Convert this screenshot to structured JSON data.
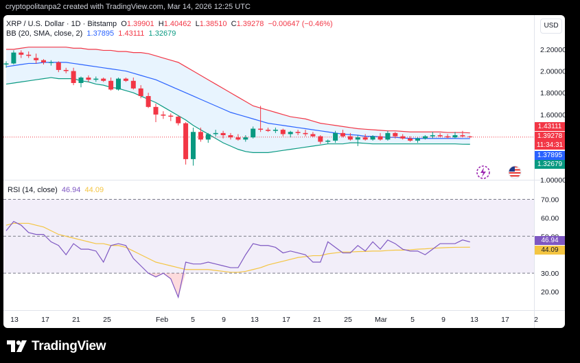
{
  "attribution": "cryptopolitanpa2 created with TradingView.com, Mar 14, 2026 12:25 UTC",
  "footer": {
    "brand": "TradingView"
  },
  "currency_button": "USD",
  "legend": {
    "symbol": "XRP / U.S. Dollar · 1D · Bitstamp",
    "open_label": "O",
    "open": "1.39901",
    "high_label": "H",
    "high": "1.40462",
    "low_label": "L",
    "low": "1.38510",
    "close_label": "C",
    "close": "1.39278",
    "change": "−0.00647 (−0.46%)",
    "bb_label": "BB (20, SMA, close, 2)",
    "bb_basis": "1.37895",
    "bb_upper": "1.43111",
    "bb_lower": "1.32679",
    "rsi_label": "RSI (14, close)",
    "rsi_value": "46.94",
    "rsi_ma": "44.09"
  },
  "price_tags": {
    "upper": "1.43111",
    "last": "1.39278",
    "countdown": "11:34:31",
    "basis": "1.37895",
    "lower": "1.32679",
    "rsi": "46.94",
    "rsi_ma": "44.09"
  },
  "colors": {
    "up": "#089981",
    "down": "#f23645",
    "bb_basis": "#2962ff",
    "bb_upper": "#f23645",
    "bb_lower": "#089981",
    "rsi": "#7e57c2",
    "rsi_ma": "#f4c542"
  },
  "chart_data": [
    {
      "type": "candlestick",
      "title": "XRP / U.S. Dollar · 1D · Bitstamp",
      "ylim": [
        1.0,
        2.3
      ],
      "y_ticks": [
        "2.20000",
        "2.00000",
        "1.80000",
        "1.60000",
        "1.00000"
      ],
      "x_ticks": [
        "13",
        "17",
        "21",
        "25",
        "Feb",
        "5",
        "9",
        "13",
        "17",
        "21",
        "25",
        "Mar",
        "5",
        "9",
        "13",
        "17",
        "2"
      ],
      "ohlc": [
        [
          2.06,
          2.09,
          2.03,
          2.07
        ],
        [
          2.07,
          2.19,
          2.06,
          2.17
        ],
        [
          2.17,
          2.19,
          2.12,
          2.15
        ],
        [
          2.15,
          2.18,
          2.12,
          2.14
        ],
        [
          2.12,
          2.16,
          2.07,
          2.1
        ],
        [
          2.1,
          2.11,
          2.06,
          2.08
        ],
        [
          2.08,
          2.1,
          2.05,
          2.08
        ],
        [
          2.08,
          2.09,
          1.99,
          2.01
        ],
        [
          2.01,
          2.03,
          1.98,
          2.0
        ],
        [
          2.0,
          2.03,
          1.87,
          1.89
        ],
        [
          1.89,
          1.95,
          1.85,
          1.94
        ],
        [
          1.94,
          1.96,
          1.9,
          1.92
        ],
        [
          1.92,
          1.95,
          1.9,
          1.93
        ],
        [
          1.93,
          1.94,
          1.9,
          1.91
        ],
        [
          1.91,
          1.94,
          1.82,
          1.83
        ],
        [
          1.83,
          1.94,
          1.82,
          1.93
        ],
        [
          1.93,
          1.94,
          1.9,
          1.91
        ],
        [
          1.91,
          1.94,
          1.83,
          1.84
        ],
        [
          1.84,
          1.87,
          1.75,
          1.77
        ],
        [
          1.77,
          1.8,
          1.66,
          1.67
        ],
        [
          1.67,
          1.7,
          1.53,
          1.6
        ],
        [
          1.6,
          1.63,
          1.56,
          1.59
        ],
        [
          1.59,
          1.61,
          1.54,
          1.58
        ],
        [
          1.58,
          1.59,
          1.5,
          1.52
        ],
        [
          1.52,
          1.53,
          1.14,
          1.19
        ],
        [
          1.19,
          1.48,
          1.13,
          1.44
        ],
        [
          1.44,
          1.48,
          1.35,
          1.37
        ],
        [
          1.37,
          1.43,
          1.34,
          1.42
        ],
        [
          1.42,
          1.46,
          1.4,
          1.43
        ],
        [
          1.43,
          1.45,
          1.38,
          1.41
        ],
        [
          1.41,
          1.43,
          1.37,
          1.39
        ],
        [
          1.39,
          1.42,
          1.36,
          1.37
        ],
        [
          1.37,
          1.41,
          1.35,
          1.39
        ],
        [
          1.39,
          1.49,
          1.38,
          1.47
        ],
        [
          1.47,
          1.68,
          1.44,
          1.46
        ],
        [
          1.46,
          1.48,
          1.44,
          1.45
        ],
        [
          1.45,
          1.48,
          1.43,
          1.46
        ],
        [
          1.46,
          1.47,
          1.4,
          1.42
        ],
        [
          1.42,
          1.45,
          1.39,
          1.44
        ],
        [
          1.44,
          1.46,
          1.41,
          1.43
        ],
        [
          1.43,
          1.46,
          1.4,
          1.42
        ],
        [
          1.42,
          1.44,
          1.39,
          1.4
        ],
        [
          1.4,
          1.41,
          1.33,
          1.35
        ],
        [
          1.35,
          1.37,
          1.33,
          1.36
        ],
        [
          1.36,
          1.45,
          1.34,
          1.43
        ],
        [
          1.43,
          1.46,
          1.39,
          1.4
        ],
        [
          1.4,
          1.43,
          1.36,
          1.37
        ],
        [
          1.37,
          1.41,
          1.31,
          1.39
        ],
        [
          1.39,
          1.42,
          1.36,
          1.37
        ],
        [
          1.37,
          1.41,
          1.36,
          1.4
        ],
        [
          1.4,
          1.43,
          1.36,
          1.37
        ],
        [
          1.37,
          1.45,
          1.36,
          1.43
        ],
        [
          1.43,
          1.44,
          1.38,
          1.4
        ],
        [
          1.4,
          1.42,
          1.37,
          1.38
        ],
        [
          1.38,
          1.4,
          1.35,
          1.36
        ],
        [
          1.36,
          1.39,
          1.34,
          1.38
        ],
        [
          1.38,
          1.41,
          1.37,
          1.4
        ],
        [
          1.4,
          1.44,
          1.38,
          1.41
        ],
        [
          1.41,
          1.43,
          1.39,
          1.4
        ],
        [
          1.4,
          1.42,
          1.38,
          1.39
        ],
        [
          1.39,
          1.44,
          1.38,
          1.41
        ],
        [
          1.41,
          1.45,
          1.39,
          1.4
        ],
        [
          1.39901,
          1.40462,
          1.3851,
          1.39278
        ]
      ],
      "bb_upper": [
        2.2,
        2.2,
        2.21,
        2.22,
        2.22,
        2.22,
        2.22,
        2.22,
        2.22,
        2.21,
        2.21,
        2.2,
        2.2,
        2.19,
        2.19,
        2.18,
        2.18,
        2.17,
        2.17,
        2.16,
        2.14,
        2.12,
        2.1,
        2.08,
        2.04,
        2.0,
        1.96,
        1.92,
        1.88,
        1.84,
        1.8,
        1.76,
        1.72,
        1.68,
        1.66,
        1.64,
        1.62,
        1.6,
        1.58,
        1.57,
        1.56,
        1.54,
        1.52,
        1.51,
        1.5,
        1.49,
        1.48,
        1.47,
        1.465,
        1.46,
        1.455,
        1.45,
        1.45,
        1.445,
        1.44,
        1.44,
        1.44,
        1.44,
        1.44,
        1.435,
        1.435,
        1.435,
        1.43111
      ],
      "bb_basis": [
        2.04,
        2.05,
        2.06,
        2.07,
        2.07,
        2.08,
        2.08,
        2.08,
        2.08,
        2.07,
        2.06,
        2.05,
        2.04,
        2.03,
        2.02,
        2.01,
        2.0,
        1.98,
        1.96,
        1.94,
        1.92,
        1.89,
        1.86,
        1.83,
        1.8,
        1.77,
        1.74,
        1.71,
        1.68,
        1.65,
        1.62,
        1.6,
        1.58,
        1.56,
        1.54,
        1.52,
        1.51,
        1.5,
        1.49,
        1.48,
        1.47,
        1.46,
        1.45,
        1.44,
        1.43,
        1.42,
        1.415,
        1.41,
        1.4,
        1.4,
        1.395,
        1.39,
        1.39,
        1.385,
        1.38,
        1.38,
        1.38,
        1.38,
        1.38,
        1.38,
        1.38,
        1.379,
        1.37895
      ],
      "bb_lower": [
        1.88,
        1.89,
        1.9,
        1.91,
        1.92,
        1.93,
        1.94,
        1.93,
        1.93,
        1.93,
        1.91,
        1.9,
        1.88,
        1.87,
        1.85,
        1.84,
        1.82,
        1.8,
        1.77,
        1.74,
        1.71,
        1.67,
        1.63,
        1.59,
        1.55,
        1.5,
        1.46,
        1.42,
        1.38,
        1.34,
        1.31,
        1.28,
        1.26,
        1.25,
        1.25,
        1.25,
        1.26,
        1.27,
        1.28,
        1.29,
        1.3,
        1.31,
        1.32,
        1.33,
        1.33,
        1.33,
        1.34,
        1.34,
        1.335,
        1.33,
        1.33,
        1.33,
        1.33,
        1.33,
        1.33,
        1.33,
        1.33,
        1.33,
        1.33,
        1.33,
        1.33,
        1.327,
        1.32679
      ]
    },
    {
      "type": "line",
      "title": "RSI (14, close)",
      "ylim": [
        10,
        75
      ],
      "y_ticks": [
        "70.00",
        "60.00",
        "50.00",
        "30.00",
        "20.00"
      ],
      "bands": [
        70,
        50,
        30
      ],
      "series": [
        {
          "name": "RSI",
          "values": [
            53,
            58,
            56,
            52,
            51,
            51,
            47,
            45,
            40,
            46,
            43,
            43,
            42,
            36,
            45,
            46,
            45,
            38,
            34,
            30,
            28,
            30,
            27,
            17,
            36,
            35,
            35,
            36,
            35,
            34,
            33,
            33,
            40,
            46,
            45,
            45,
            44,
            41,
            42,
            41,
            40,
            36,
            36,
            47,
            44,
            41,
            41,
            45,
            42,
            47,
            43,
            48,
            46,
            43,
            42,
            42,
            40,
            43,
            46,
            46,
            46,
            48,
            46.94
          ]
        },
        {
          "name": "RSI MA",
          "values": [
            56,
            57,
            57,
            57,
            56,
            55,
            53,
            51,
            50,
            49,
            48,
            47,
            46,
            46,
            45,
            45,
            44,
            42,
            40,
            38,
            36,
            35,
            34,
            33,
            32,
            32,
            32,
            32,
            31.5,
            31,
            30.5,
            30.5,
            31,
            32,
            33,
            34.5,
            35.5,
            36.5,
            37.5,
            38.5,
            39,
            39.5,
            39.5,
            40.5,
            41,
            41.5,
            41.5,
            41.7,
            41.8,
            42,
            42,
            42.3,
            42.5,
            42.5,
            42.7,
            43,
            43.2,
            43.5,
            43.7,
            43.9,
            44,
            44.05,
            44.09
          ]
        }
      ]
    }
  ]
}
